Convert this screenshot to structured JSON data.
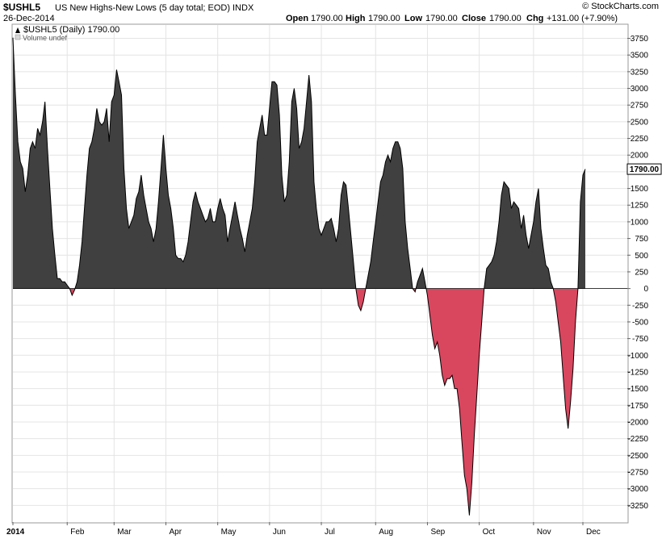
{
  "header": {
    "symbol": "$USHL5",
    "description": "US New Highs-New Lows (5 day total; EOD)",
    "exchange": "INDX",
    "date": "26-Dec-2014",
    "open_label": "Open",
    "open_value": "1790.00",
    "high_label": "High",
    "high_value": "1790.00",
    "low_label": "Low",
    "low_value": "1790.00",
    "close_label": "Close",
    "close_value": "1790.00",
    "chg_label": "Chg",
    "chg_value": "+131.00 (+7.90%)",
    "watermark": "© StockCharts.com",
    "trend_icon": "up-triangle-icon"
  },
  "legend": {
    "series_label": "$USHL5 (Daily) 1790.00",
    "volume_label": "Volume undef"
  },
  "last_value_badge": "1790.00",
  "colors": {
    "positive_fill": "#404040",
    "negative_fill": "#d9475f",
    "outline": "#000000",
    "grid": "#e4e4e4"
  },
  "chart_data": {
    "type": "area",
    "ylim": [
      -3500,
      3950
    ],
    "y_ticks": [
      3750,
      3500,
      3250,
      3000,
      2750,
      2500,
      2250,
      2000,
      1750,
      1500,
      1250,
      1000,
      750,
      500,
      250,
      0,
      -250,
      -500,
      -750,
      -1000,
      -1250,
      -1500,
      -1750,
      -2000,
      -2250,
      -2500,
      -2750,
      -3000,
      -3250
    ],
    "x_tick_labels": [
      "2014",
      "Feb",
      "Mar",
      "Apr",
      "May",
      "Jun",
      "Jul",
      "Aug",
      "Sep",
      "Oct",
      "Nov",
      "Dec"
    ],
    "x_tick_positions": [
      0,
      22,
      41,
      62,
      83,
      104,
      125,
      147,
      168,
      189,
      211,
      231
    ],
    "x_count": 250,
    "keypoints": [
      [
        0,
        3760
      ],
      [
        1,
        2900
      ],
      [
        2,
        2200
      ],
      [
        3,
        1900
      ],
      [
        4,
        1800
      ],
      [
        5,
        1450
      ],
      [
        6,
        1700
      ],
      [
        7,
        2100
      ],
      [
        8,
        2200
      ],
      [
        9,
        2100
      ],
      [
        10,
        2400
      ],
      [
        11,
        2300
      ],
      [
        12,
        2500
      ],
      [
        13,
        2800
      ],
      [
        14,
        2100
      ],
      [
        15,
        1500
      ],
      [
        16,
        900
      ],
      [
        17,
        500
      ],
      [
        18,
        150
      ],
      [
        19,
        150
      ],
      [
        20,
        100
      ],
      [
        21,
        100
      ],
      [
        22,
        50
      ],
      [
        23,
        0
      ],
      [
        24,
        -100
      ],
      [
        25,
        -20
      ],
      [
        26,
        100
      ],
      [
        27,
        350
      ],
      [
        28,
        700
      ],
      [
        29,
        1200
      ],
      [
        30,
        1700
      ],
      [
        31,
        2100
      ],
      [
        32,
        2200
      ],
      [
        33,
        2400
      ],
      [
        34,
        2700
      ],
      [
        35,
        2500
      ],
      [
        36,
        2450
      ],
      [
        37,
        2500
      ],
      [
        38,
        2700
      ],
      [
        39,
        2200
      ],
      [
        40,
        2800
      ],
      [
        41,
        2900
      ],
      [
        42,
        3280
      ],
      [
        43,
        3100
      ],
      [
        44,
        2900
      ],
      [
        45,
        1800
      ],
      [
        46,
        1200
      ],
      [
        47,
        900
      ],
      [
        48,
        1000
      ],
      [
        49,
        1100
      ],
      [
        50,
        1350
      ],
      [
        51,
        1450
      ],
      [
        52,
        1700
      ],
      [
        53,
        1400
      ],
      [
        54,
        1200
      ],
      [
        55,
        1000
      ],
      [
        56,
        900
      ],
      [
        57,
        700
      ],
      [
        58,
        900
      ],
      [
        59,
        1300
      ],
      [
        60,
        1800
      ],
      [
        61,
        2300
      ],
      [
        62,
        1800
      ],
      [
        63,
        1400
      ],
      [
        64,
        1200
      ],
      [
        65,
        900
      ],
      [
        66,
        500
      ],
      [
        67,
        450
      ],
      [
        68,
        450
      ],
      [
        69,
        400
      ],
      [
        70,
        500
      ],
      [
        71,
        700
      ],
      [
        72,
        1000
      ],
      [
        73,
        1300
      ],
      [
        74,
        1450
      ],
      [
        75,
        1300
      ],
      [
        76,
        1200
      ],
      [
        77,
        1100
      ],
      [
        78,
        1000
      ],
      [
        79,
        1050
      ],
      [
        80,
        1200
      ],
      [
        81,
        1000
      ],
      [
        82,
        1000
      ],
      [
        83,
        1200
      ],
      [
        84,
        1350
      ],
      [
        85,
        1200
      ],
      [
        86,
        1100
      ],
      [
        87,
        700
      ],
      [
        88,
        900
      ],
      [
        89,
        1100
      ],
      [
        90,
        1300
      ],
      [
        91,
        1100
      ],
      [
        92,
        900
      ],
      [
        93,
        750
      ],
      [
        94,
        550
      ],
      [
        95,
        800
      ],
      [
        96,
        1000
      ],
      [
        97,
        1200
      ],
      [
        98,
        1600
      ],
      [
        99,
        2200
      ],
      [
        100,
        2400
      ],
      [
        101,
        2600
      ],
      [
        102,
        2300
      ],
      [
        103,
        2300
      ],
      [
        104,
        2700
      ],
      [
        105,
        3100
      ],
      [
        106,
        3100
      ],
      [
        107,
        3050
      ],
      [
        108,
        2600
      ],
      [
        109,
        1700
      ],
      [
        110,
        1300
      ],
      [
        111,
        1400
      ],
      [
        112,
        1900
      ],
      [
        113,
        2800
      ],
      [
        114,
        3000
      ],
      [
        115,
        2700
      ],
      [
        116,
        2100
      ],
      [
        117,
        2200
      ],
      [
        118,
        2400
      ],
      [
        119,
        2800
      ],
      [
        120,
        3200
      ],
      [
        121,
        2800
      ],
      [
        122,
        1600
      ],
      [
        123,
        1200
      ],
      [
        124,
        900
      ],
      [
        125,
        800
      ],
      [
        126,
        900
      ],
      [
        127,
        1000
      ],
      [
        128,
        1000
      ],
      [
        129,
        1050
      ],
      [
        130,
        900
      ],
      [
        131,
        700
      ],
      [
        132,
        900
      ],
      [
        133,
        1400
      ],
      [
        134,
        1600
      ],
      [
        135,
        1550
      ],
      [
        136,
        1200
      ],
      [
        137,
        800
      ],
      [
        138,
        400
      ],
      [
        139,
        0
      ],
      [
        140,
        -250
      ],
      [
        141,
        -330
      ],
      [
        142,
        -200
      ],
      [
        143,
        0
      ],
      [
        144,
        200
      ],
      [
        145,
        400
      ],
      [
        146,
        700
      ],
      [
        147,
        1000
      ],
      [
        148,
        1300
      ],
      [
        149,
        1600
      ],
      [
        150,
        1700
      ],
      [
        151,
        1900
      ],
      [
        152,
        2000
      ],
      [
        153,
        1900
      ],
      [
        154,
        2100
      ],
      [
        155,
        2200
      ],
      [
        156,
        2200
      ],
      [
        157,
        2100
      ],
      [
        158,
        1800
      ],
      [
        159,
        1000
      ],
      [
        160,
        600
      ],
      [
        161,
        300
      ],
      [
        162,
        0
      ],
      [
        163,
        -50
      ],
      [
        164,
        100
      ],
      [
        165,
        200
      ],
      [
        166,
        300
      ],
      [
        167,
        100
      ],
      [
        168,
        -100
      ],
      [
        169,
        -400
      ],
      [
        170,
        -700
      ],
      [
        171,
        -900
      ],
      [
        172,
        -800
      ],
      [
        173,
        -1000
      ],
      [
        174,
        -1300
      ],
      [
        175,
        -1450
      ],
      [
        176,
        -1350
      ],
      [
        177,
        -1350
      ],
      [
        178,
        -1300
      ],
      [
        179,
        -1500
      ],
      [
        180,
        -1500
      ],
      [
        181,
        -1800
      ],
      [
        182,
        -2300
      ],
      [
        183,
        -2800
      ],
      [
        184,
        -3000
      ],
      [
        185,
        -3400
      ],
      [
        186,
        -2900
      ],
      [
        187,
        -2200
      ],
      [
        188,
        -1600
      ],
      [
        189,
        -1000
      ],
      [
        190,
        -500
      ],
      [
        191,
        0
      ],
      [
        192,
        300
      ],
      [
        193,
        350
      ],
      [
        194,
        400
      ],
      [
        195,
        500
      ],
      [
        196,
        700
      ],
      [
        197,
        1000
      ],
      [
        198,
        1400
      ],
      [
        199,
        1600
      ],
      [
        200,
        1550
      ],
      [
        201,
        1500
      ],
      [
        202,
        1200
      ],
      [
        203,
        1300
      ],
      [
        204,
        1250
      ],
      [
        205,
        1200
      ],
      [
        206,
        900
      ],
      [
        207,
        1100
      ],
      [
        208,
        800
      ],
      [
        209,
        600
      ],
      [
        210,
        800
      ],
      [
        211,
        1000
      ],
      [
        212,
        1300
      ],
      [
        213,
        1500
      ],
      [
        214,
        900
      ],
      [
        215,
        600
      ],
      [
        216,
        350
      ],
      [
        217,
        300
      ],
      [
        218,
        100
      ],
      [
        219,
        0
      ],
      [
        220,
        -200
      ],
      [
        221,
        -500
      ],
      [
        222,
        -800
      ],
      [
        223,
        -1300
      ],
      [
        224,
        -1800
      ],
      [
        225,
        -2100
      ],
      [
        226,
        -1700
      ],
      [
        227,
        -1200
      ],
      [
        228,
        -500
      ],
      [
        229,
        0
      ],
      [
        230,
        1300
      ],
      [
        231,
        1700
      ],
      [
        232,
        1790
      ]
    ]
  }
}
